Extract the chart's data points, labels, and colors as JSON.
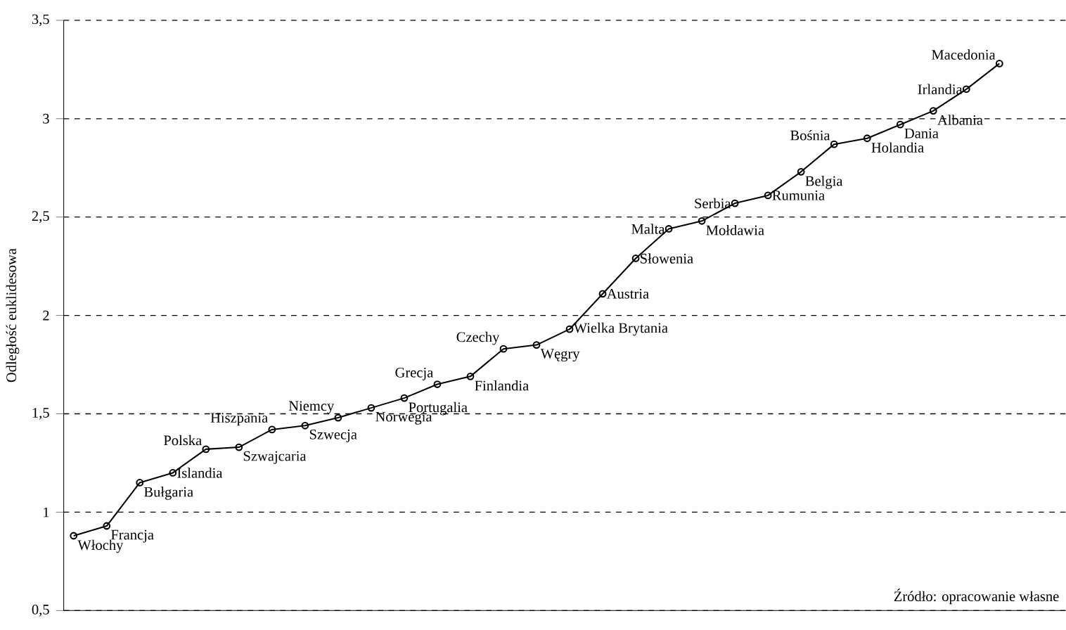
{
  "chart_data": {
    "type": "line",
    "ylabel": "Odległość euklidesowa",
    "categories": [
      null,
      null,
      null,
      null,
      null,
      null,
      null,
      null,
      null,
      null,
      null,
      null,
      null,
      null,
      null,
      null,
      null,
      null,
      null,
      null,
      null,
      null,
      null,
      null,
      null,
      null,
      null,
      null,
      null
    ],
    "series": [
      {
        "color": "#000000",
        "values": [
          0.88,
          0.93,
          1.15,
          1.2,
          1.32,
          1.33,
          1.42,
          1.44,
          1.48,
          1.53,
          1.58,
          1.65,
          1.69,
          1.83,
          1.85,
          1.93,
          2.11,
          2.29,
          2.44,
          2.48,
          2.57,
          2.61,
          2.73,
          2.87,
          2.9,
          2.97,
          3.04,
          3.15,
          3.28
        ]
      }
    ],
    "ylim": [
      0.5,
      3.5
    ],
    "yticks": [
      {
        "value": 0.5,
        "label": "0,5"
      },
      1,
      {
        "value": 1.5,
        "label": "1,5"
      },
      2,
      {
        "value": 2.5,
        "label": "2,5"
      },
      3,
      {
        "value": 3.5,
        "label": "3,5"
      }
    ],
    "grid": "y",
    "marker": "circle",
    "line_style": "solid",
    "tick_labels": "y",
    "annotations": [
      "Włochy",
      "Francja",
      "Bułgaria",
      "Islandia",
      "Polska",
      "Szwajcaria",
      "Hiszpania",
      "Szwecja",
      "Niemcy",
      "Norwegia",
      "Portugalia",
      "Grecja",
      "Finlandia",
      "Czechy",
      "Węgry",
      "Wielka Brytania",
      "Austria",
      "Słowenia",
      "Malta",
      "Mołdawia",
      "Serbia",
      "Rumunia",
      "Belgia",
      "Bośnia",
      "Holandia",
      "Dania",
      "Albania",
      "Irlandia",
      "Macedonia",
      "Źródło: opracowanie własne"
    ]
  }
}
